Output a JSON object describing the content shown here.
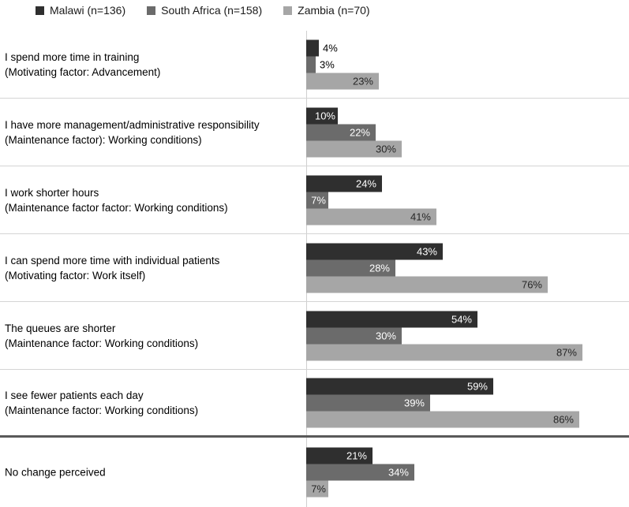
{
  "chart_data": {
    "type": "bar",
    "orientation": "horizontal",
    "title": "",
    "unit": "%",
    "xlim": [
      0,
      100
    ],
    "legend_position": "top-left",
    "grid": false,
    "axis_line_color": "#cfcfcf",
    "row_separator_color": "#d4d4d4",
    "section_divider_color": "#595959",
    "data_label_rule": "inside end; outside end when bar too short",
    "categories": [
      {
        "label": "I spend more time in training",
        "sublabel": "(Motivating factor: Advancement)"
      },
      {
        "label": "I have more management/administrative responsibility",
        "sublabel": "(Maintenance factor): Working conditions)"
      },
      {
        "label": "I work shorter hours",
        "sublabel": "(Maintenance factor factor: Working conditions)"
      },
      {
        "label": "I can spend more time with individual patients",
        "sublabel": "(Motivating factor: Work itself)"
      },
      {
        "label": "The queues are shorter",
        "sublabel": "(Maintenance factor: Working conditions)"
      },
      {
        "label": "I see fewer patients each day",
        "sublabel": "(Maintenance factor: Working conditions)"
      },
      {
        "label": "No change perceived",
        "sublabel": ""
      }
    ],
    "series": [
      {
        "key": "malawi",
        "name": "Malawi (n=136)",
        "color": "#2f2f2f",
        "inside_label_color": "#ffffff",
        "values": [
          4,
          10,
          24,
          43,
          54,
          59,
          21
        ]
      },
      {
        "key": "south-africa",
        "name": "South Africa (n=158)",
        "color": "#6b6b6b",
        "inside_label_color": "#ffffff",
        "values": [
          3,
          22,
          7,
          28,
          30,
          39,
          34
        ]
      },
      {
        "key": "zambia",
        "name": "Zambia (n=70)",
        "color": "#a6a6a6",
        "inside_label_color": "#262626",
        "values": [
          23,
          30,
          41,
          76,
          87,
          86,
          7
        ]
      }
    ]
  }
}
